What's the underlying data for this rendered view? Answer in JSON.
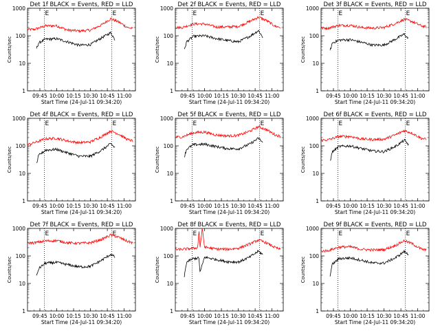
{
  "figure": {
    "ylabel": "Counts/sec",
    "xlabel": "Start Time (24-Jul-11 09:34:20)"
  },
  "chart_data": [
    {
      "type": "line",
      "title": "Det 1f BLACK = Events, RED = LLD",
      "xlabel": "Start Time (24-Jul-11 09:34:20)",
      "ylabel": "Counts/sec",
      "yscale": "log",
      "ylim": [
        1,
        1000
      ],
      "xlim": [
        "09:34",
        "11:10"
      ],
      "x_ticks": [
        "09:45",
        "10:00",
        "10:15",
        "10:30",
        "10:45",
        "11:00"
      ],
      "y_ticks": [
        "1",
        "10",
        "100",
        "1000"
      ],
      "markers": [
        "09:49",
        "10:49"
      ],
      "marker_label": "E",
      "series": [
        {
          "color": "#ff0000",
          "x": [
            "09:34",
            "09:40",
            "09:50",
            "10:00",
            "10:10",
            "10:20",
            "10:30",
            "10:40",
            "10:48",
            "10:55",
            "11:03",
            "11:08"
          ],
          "values": [
            170,
            170,
            230,
            230,
            160,
            150,
            160,
            250,
            420,
            320,
            200,
            180
          ]
        },
        {
          "color": "#000000",
          "x": [
            "09:42",
            "09:44",
            "09:50",
            "10:00",
            "10:10",
            "10:20",
            "10:30",
            "10:40",
            "10:48",
            "10:52"
          ],
          "values": [
            35,
            55,
            75,
            78,
            60,
            45,
            48,
            85,
            130,
            70
          ]
        }
      ]
    },
    {
      "type": "line",
      "title": "Det 2f BLACK = Events, RED = LLD",
      "xlabel": "Start Time (24-Jul-11 09:34:20)",
      "ylabel": "Counts/sec",
      "yscale": "log",
      "ylim": [
        1,
        1000
      ],
      "xlim": [
        "09:34",
        "11:10"
      ],
      "x_ticks": [
        "09:45",
        "10:00",
        "10:15",
        "10:30",
        "10:45",
        "11:00"
      ],
      "y_ticks": [
        "1",
        "10",
        "100",
        "1000"
      ],
      "markers": [
        "09:49",
        "10:49"
      ],
      "marker_label": "E",
      "series": [
        {
          "color": "#ff0000",
          "x": [
            "09:34",
            "09:40",
            "09:50",
            "10:00",
            "10:10",
            "10:20",
            "10:30",
            "10:40",
            "10:48",
            "10:55",
            "11:03",
            "11:08"
          ],
          "values": [
            200,
            200,
            270,
            270,
            210,
            210,
            220,
            330,
            480,
            360,
            220,
            200
          ]
        },
        {
          "color": "#000000",
          "x": [
            "09:42",
            "09:44",
            "09:50",
            "10:00",
            "10:10",
            "10:20",
            "10:30",
            "10:40",
            "10:48",
            "10:52"
          ],
          "values": [
            30,
            60,
            95,
            100,
            80,
            68,
            60,
            95,
            155,
            85
          ]
        }
      ]
    },
    {
      "type": "line",
      "title": "Det 3f BLACK = Events, RED = LLD",
      "xlabel": "Start Time (24-Jul-11 09:34:20)",
      "ylabel": "Counts/sec",
      "yscale": "log",
      "ylim": [
        1,
        1000
      ],
      "xlim": [
        "09:34",
        "11:10"
      ],
      "x_ticks": [
        "09:45",
        "10:00",
        "10:15",
        "10:30",
        "10:45",
        "11:00"
      ],
      "y_ticks": [
        "1",
        "10",
        "100",
        "1000"
      ],
      "markers": [
        "09:49",
        "10:49"
      ],
      "marker_label": "E",
      "series": [
        {
          "color": "#ff0000",
          "x": [
            "09:34",
            "09:40",
            "09:50",
            "10:00",
            "10:10",
            "10:20",
            "10:30",
            "10:40",
            "10:48",
            "10:55",
            "11:03",
            "11:08"
          ],
          "values": [
            190,
            190,
            240,
            240,
            200,
            190,
            200,
            280,
            400,
            330,
            230,
            210
          ]
        },
        {
          "color": "#000000",
          "x": [
            "09:42",
            "09:44",
            "09:50",
            "10:00",
            "10:10",
            "10:20",
            "10:30",
            "10:40",
            "10:48",
            "10:52"
          ],
          "values": [
            28,
            55,
            70,
            72,
            58,
            46,
            46,
            75,
            115,
            75
          ]
        }
      ]
    },
    {
      "type": "line",
      "title": "Det 4f BLACK = Events, RED = LLD",
      "xlabel": "Start Time (24-Jul-11 09:34:20)",
      "ylabel": "Counts/sec",
      "yscale": "log",
      "ylim": [
        1,
        1000
      ],
      "xlim": [
        "09:34",
        "11:10"
      ],
      "x_ticks": [
        "09:45",
        "10:00",
        "10:15",
        "10:30",
        "10:45",
        "11:00"
      ],
      "y_ticks": [
        "1",
        "10",
        "100",
        "1000"
      ],
      "markers": [
        "09:49",
        "10:49"
      ],
      "marker_label": "E",
      "series": [
        {
          "color": "#ff0000",
          "x": [
            "09:34",
            "09:40",
            "09:50",
            "10:00",
            "10:10",
            "10:20",
            "10:30",
            "10:40",
            "10:48",
            "10:55",
            "11:03",
            "11:08"
          ],
          "values": [
            110,
            130,
            180,
            190,
            150,
            130,
            140,
            220,
            350,
            270,
            170,
            150
          ]
        },
        {
          "color": "#000000",
          "x": [
            "09:42",
            "09:44",
            "09:50",
            "10:00",
            "10:10",
            "10:20",
            "10:30",
            "10:40",
            "10:48",
            "10:52"
          ],
          "values": [
            22,
            45,
            70,
            75,
            55,
            42,
            42,
            70,
            120,
            85
          ]
        }
      ]
    },
    {
      "type": "line",
      "title": "Det 5f BLACK = Events, RED = LLD",
      "xlabel": "Start Time (24-Jul-11 09:34:20)",
      "ylabel": "Counts/sec",
      "yscale": "log",
      "ylim": [
        1,
        1000
      ],
      "xlim": [
        "09:34",
        "11:10"
      ],
      "x_ticks": [
        "09:45",
        "10:00",
        "10:15",
        "10:30",
        "10:45",
        "11:00"
      ],
      "y_ticks": [
        "1",
        "10",
        "100",
        "1000"
      ],
      "markers": [
        "09:49",
        "10:49"
      ],
      "marker_label": "E",
      "series": [
        {
          "color": "#ff0000",
          "x": [
            "09:34",
            "09:40",
            "09:50",
            "10:00",
            "10:10",
            "10:20",
            "10:30",
            "10:40",
            "10:48",
            "10:55",
            "11:03",
            "11:08"
          ],
          "values": [
            210,
            210,
            300,
            320,
            250,
            230,
            240,
            340,
            500,
            390,
            250,
            220
          ]
        },
        {
          "color": "#000000",
          "x": [
            "09:42",
            "09:44",
            "09:50",
            "10:00",
            "10:10",
            "10:20",
            "10:30",
            "10:40",
            "10:48",
            "10:52"
          ],
          "values": [
            40,
            75,
            110,
            115,
            95,
            80,
            78,
            115,
            190,
            130
          ]
        }
      ]
    },
    {
      "type": "line",
      "title": "Det 6f BLACK = Events, RED = LLD",
      "xlabel": "Start Time (24-Jul-11 09:34:20)",
      "ylabel": "Counts/sec",
      "yscale": "log",
      "ylim": [
        1,
        1000
      ],
      "xlim": [
        "09:34",
        "11:10"
      ],
      "x_ticks": [
        "09:45",
        "10:00",
        "10:15",
        "10:30",
        "10:45",
        "11:00"
      ],
      "y_ticks": [
        "1",
        "10",
        "100",
        "1000"
      ],
      "markers": [
        "09:49",
        "10:49"
      ],
      "marker_label": "E",
      "series": [
        {
          "color": "#ff0000",
          "x": [
            "09:34",
            "09:40",
            "09:50",
            "10:00",
            "10:10",
            "10:20",
            "10:30",
            "10:40",
            "10:48",
            "10:55",
            "11:03",
            "11:08"
          ],
          "values": [
            160,
            165,
            220,
            220,
            180,
            170,
            175,
            250,
            360,
            290,
            190,
            170
          ]
        },
        {
          "color": "#000000",
          "x": [
            "09:42",
            "09:44",
            "09:50",
            "10:00",
            "10:10",
            "10:20",
            "10:30",
            "10:40",
            "10:48",
            "10:52"
          ],
          "values": [
            28,
            60,
            95,
            100,
            80,
            65,
            62,
            95,
            160,
            110
          ]
        }
      ]
    },
    {
      "type": "line",
      "title": "Det 7f BLACK = Events, RED = LLD",
      "xlabel": "Start Time (24-Jul-11 09:34:20)",
      "ylabel": "Counts/sec",
      "yscale": "log",
      "ylim": [
        1,
        1000
      ],
      "xlim": [
        "09:34",
        "11:10"
      ],
      "x_ticks": [
        "09:45",
        "10:00",
        "10:15",
        "10:30",
        "10:45",
        "11:00"
      ],
      "y_ticks": [
        "1",
        "10",
        "100",
        "1000"
      ],
      "markers": [
        "09:49",
        "10:49"
      ],
      "marker_label": "E",
      "series": [
        {
          "color": "#ff0000",
          "x": [
            "09:34",
            "09:40",
            "09:50",
            "10:00",
            "10:10",
            "10:20",
            "10:30",
            "10:40",
            "10:48",
            "10:55",
            "11:03",
            "11:08"
          ],
          "values": [
            300,
            300,
            350,
            360,
            300,
            290,
            300,
            400,
            580,
            480,
            340,
            300
          ]
        },
        {
          "color": "#000000",
          "x": [
            "09:42",
            "09:44",
            "09:50",
            "10:00",
            "10:10",
            "10:20",
            "10:30",
            "10:40",
            "10:48",
            "10:52"
          ],
          "values": [
            18,
            35,
            55,
            58,
            48,
            40,
            42,
            70,
            115,
            90
          ]
        }
      ]
    },
    {
      "type": "line",
      "title": "Det 8f BLACK = Events, RED = LLD",
      "xlabel": "Start Time (24-Jul-11 09:34:20)",
      "ylabel": "Counts/sec",
      "yscale": "log",
      "ylim": [
        1,
        1000
      ],
      "xlim": [
        "09:34",
        "11:10"
      ],
      "x_ticks": [
        "09:45",
        "10:00",
        "10:15",
        "10:30",
        "10:45",
        "11:00"
      ],
      "y_ticks": [
        "1",
        "10",
        "100",
        "1000"
      ],
      "markers": [
        "09:49",
        "10:49"
      ],
      "marker_label": "E",
      "series": [
        {
          "color": "#ff0000",
          "x": [
            "09:34",
            "09:40",
            "09:50",
            "09:54",
            "09:55",
            "09:56",
            "09:58",
            "10:00",
            "10:10",
            "10:20",
            "10:30",
            "10:40",
            "10:48",
            "10:55",
            "11:03",
            "11:08"
          ],
          "values": [
            170,
            175,
            190,
            200,
            1000,
            200,
            1000,
            210,
            180,
            175,
            190,
            270,
            380,
            300,
            200,
            170
          ]
        },
        {
          "color": "#000000",
          "x": [
            "09:42",
            "09:44",
            "09:50",
            "09:55",
            "09:56",
            "10:00",
            "10:10",
            "10:20",
            "10:30",
            "10:40",
            "10:48",
            "10:52"
          ],
          "values": [
            18,
            60,
            80,
            85,
            25,
            90,
            75,
            62,
            60,
            90,
            150,
            110
          ]
        }
      ]
    },
    {
      "type": "line",
      "title": "Det 9f BLACK = Events, RED = LLD",
      "xlabel": "Start Time (24-Jul-11 09:34:20)",
      "ylabel": "Counts/sec",
      "yscale": "log",
      "ylim": [
        1,
        1000
      ],
      "xlim": [
        "09:34",
        "11:10"
      ],
      "x_ticks": [
        "09:45",
        "10:00",
        "10:15",
        "10:30",
        "10:45",
        "11:00"
      ],
      "y_ticks": [
        "1",
        "10",
        "100",
        "1000"
      ],
      "markers": [
        "09:49",
        "10:49"
      ],
      "marker_label": "E",
      "series": [
        {
          "color": "#ff0000",
          "x": [
            "09:34",
            "09:40",
            "09:50",
            "10:00",
            "10:10",
            "10:20",
            "10:30",
            "10:40",
            "10:48",
            "10:55",
            "11:03",
            "11:08"
          ],
          "values": [
            150,
            155,
            210,
            215,
            175,
            165,
            170,
            240,
            360,
            280,
            180,
            160
          ]
        },
        {
          "color": "#000000",
          "x": [
            "09:42",
            "09:44",
            "09:50",
            "10:00",
            "10:10",
            "10:20",
            "10:30",
            "10:40",
            "10:48",
            "10:52"
          ],
          "values": [
            20,
            50,
            80,
            85,
            70,
            55,
            55,
            85,
            145,
            110
          ]
        }
      ]
    }
  ]
}
